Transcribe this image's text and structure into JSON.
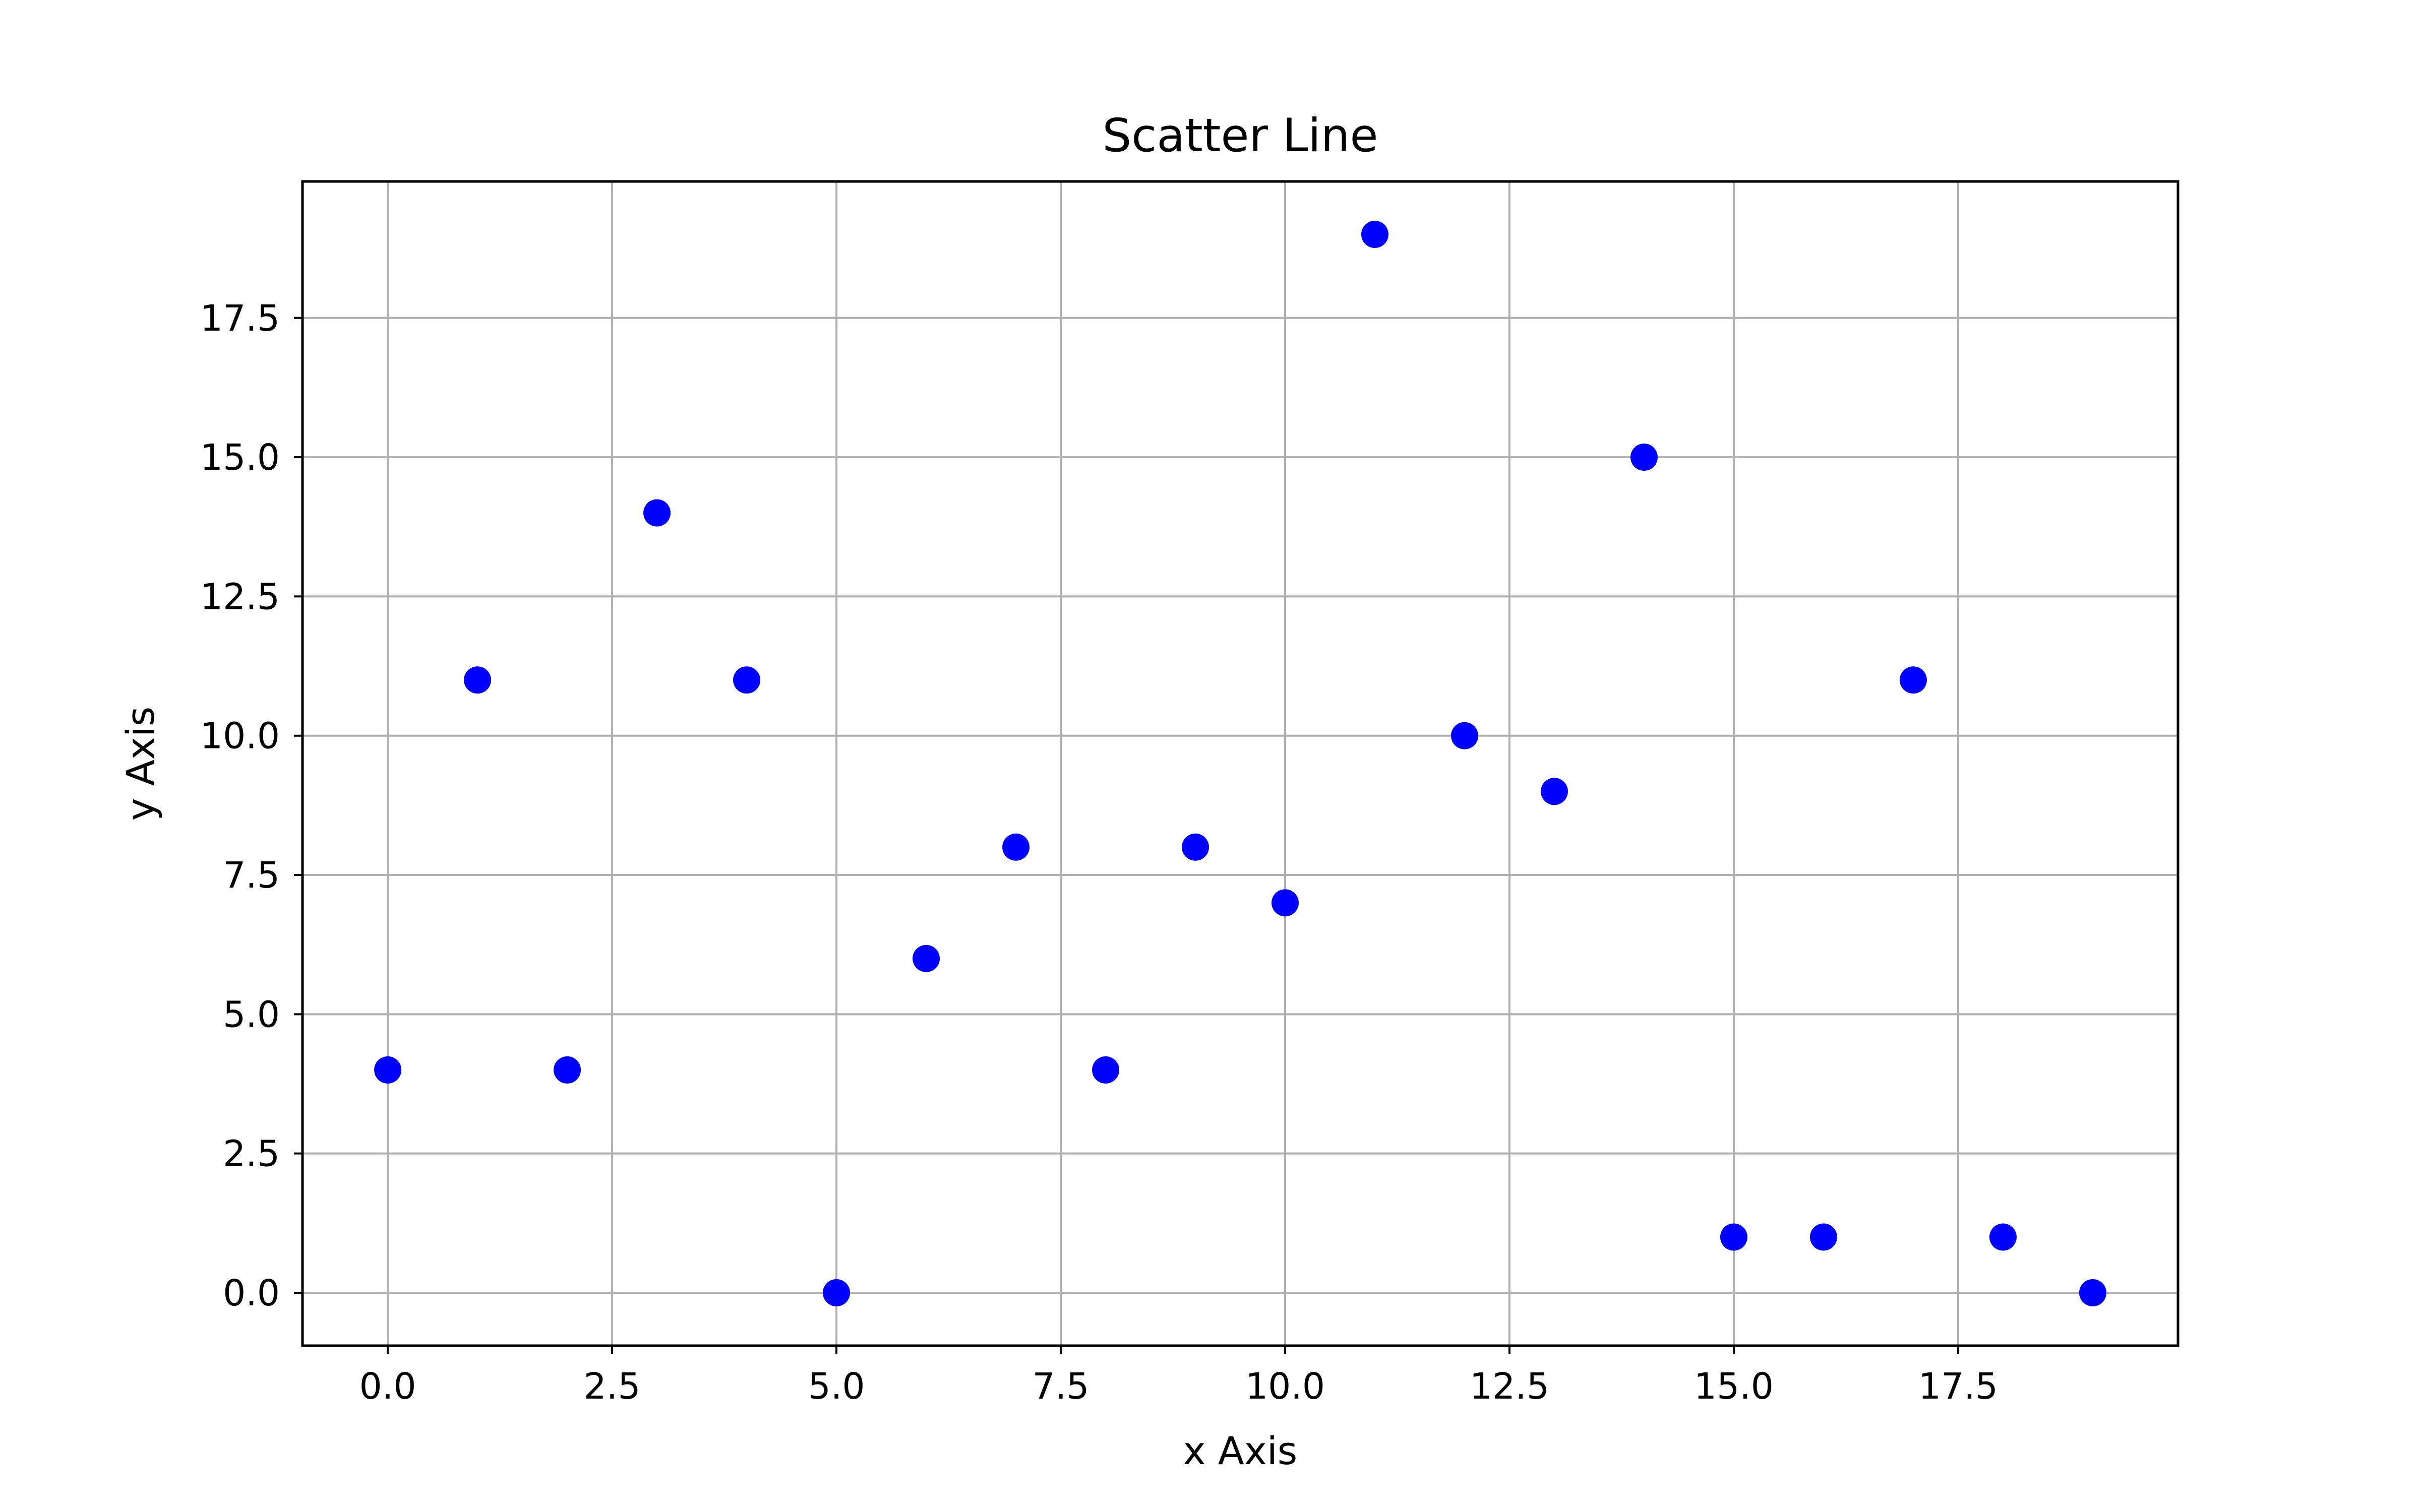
{
  "chart_data": {
    "type": "scatter",
    "title": "Scatter Line",
    "xlabel": "x Axis",
    "ylabel": "y Axis",
    "xlim": [
      -0.95,
      19.95
    ],
    "ylim": [
      -0.95,
      19.95
    ],
    "grid": true,
    "xticks": [
      0.0,
      2.5,
      5.0,
      7.5,
      10.0,
      12.5,
      15.0,
      17.5
    ],
    "xtick_labels": [
      "0.0",
      "2.5",
      "5.0",
      "7.5",
      "10.0",
      "12.5",
      "15.0",
      "17.5"
    ],
    "yticks": [
      0.0,
      2.5,
      5.0,
      7.5,
      10.0,
      12.5,
      15.0,
      17.5
    ],
    "ytick_labels": [
      "0.0",
      "2.5",
      "5.0",
      "7.5",
      "10.0",
      "12.5",
      "15.0",
      "17.5"
    ],
    "series": [
      {
        "color": "#0000ff",
        "points": [
          {
            "x": 0,
            "y": 4
          },
          {
            "x": 1,
            "y": 11
          },
          {
            "x": 2,
            "y": 4
          },
          {
            "x": 3,
            "y": 14
          },
          {
            "x": 4,
            "y": 11
          },
          {
            "x": 5,
            "y": 0
          },
          {
            "x": 6,
            "y": 6
          },
          {
            "x": 7,
            "y": 8
          },
          {
            "x": 8,
            "y": 4
          },
          {
            "x": 9,
            "y": 8
          },
          {
            "x": 10,
            "y": 7
          },
          {
            "x": 11,
            "y": 19
          },
          {
            "x": 12,
            "y": 10
          },
          {
            "x": 13,
            "y": 9
          },
          {
            "x": 14,
            "y": 15
          },
          {
            "x": 15,
            "y": 1
          },
          {
            "x": 16,
            "y": 1
          },
          {
            "x": 17,
            "y": 11
          },
          {
            "x": 18,
            "y": 1
          },
          {
            "x": 19,
            "y": 0
          }
        ]
      }
    ]
  }
}
